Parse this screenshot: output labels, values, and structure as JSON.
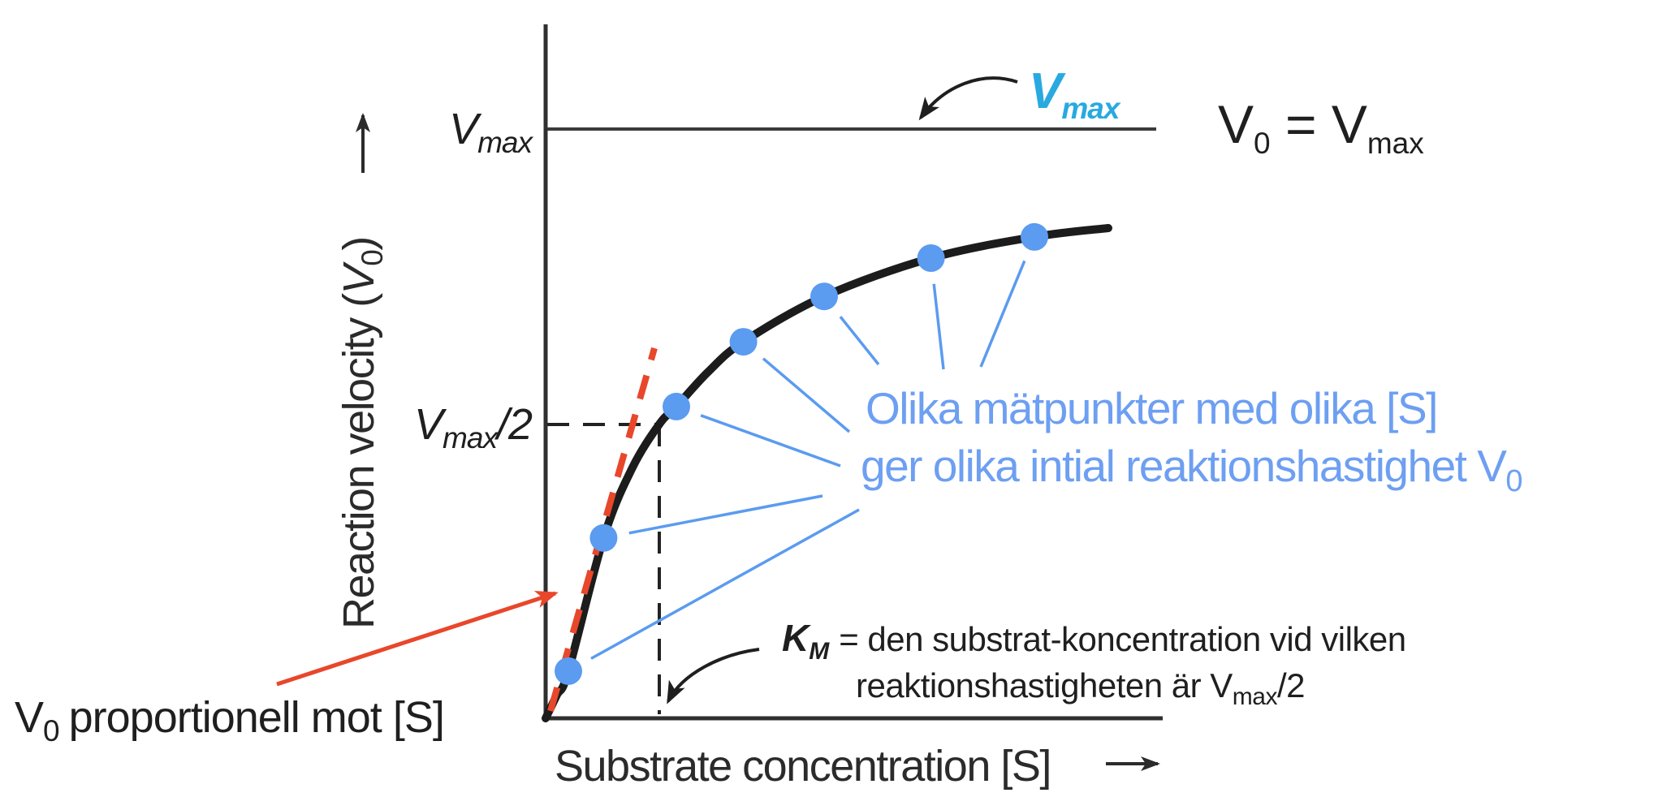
{
  "colors": {
    "ink": "#1f1f1f",
    "axis": "#2f2f2f",
    "curve": "#1c1c1c",
    "blue_marker": "#5b9bf0",
    "blue_text": "#6d9ff2",
    "cyan": "#29a9e0",
    "red": "#e8472b"
  },
  "labels": {
    "y_axis": {
      "pre": "Reaction velocity (",
      "v": "V",
      "sub": "0",
      "post": ")"
    },
    "x_axis": {
      "text": "Substrate concentration [S]"
    },
    "vmax_tick": {
      "v": "V",
      "sub": "max"
    },
    "vmax_half_tick": {
      "v": "V",
      "sub": "max",
      "post": "/2"
    },
    "vmax_callout": {
      "v": "V",
      "sub": "max"
    },
    "v0_eq_vmax": {
      "v1": "V",
      "sub1": "0",
      "eq": " = ",
      "v2": "V",
      "sub2": "max"
    },
    "measure_note": {
      "line1": "Olika mätpunkter med olika [S]",
      "line2_pre": "ger olika intial reaktionshastighet V",
      "line2_sub": "0"
    },
    "km_note": {
      "k": "K",
      "k_sub": "M",
      "line1_rest": "= den substrat-koncentration vid vilken",
      "line2_pre": "reaktionshastigheten är V",
      "line2_sub": "max",
      "line2_post": "/2"
    },
    "proportional_note": {
      "v": "V",
      "sub": "0",
      "rest": "proportionell mot [S]"
    }
  },
  "chart_data": {
    "type": "line",
    "title": "",
    "xlabel": "Substrate concentration [S]",
    "ylabel": "Reaction velocity (V0)",
    "axis_numeric_labels": false,
    "x_units": "[S] in multiples of KM (axis unlabeled, arbitrary units)",
    "y_units": "V0 as fraction of Vmax (axis unlabeled)",
    "xlim": [
      0,
      5.43
    ],
    "ylim": [
      0,
      1.18
    ],
    "grid": false,
    "legend": false,
    "vmax_level": 1.0,
    "half_vmax_level": 0.5,
    "km_position": 1.0,
    "curve_points": [
      [
        0,
        0
      ],
      [
        0.1,
        0.04
      ],
      [
        0.2,
        0.08
      ],
      [
        0.51,
        0.306
      ],
      [
        0.76,
        0.424
      ],
      [
        1.0,
        0.499
      ],
      [
        1.15,
        0.529
      ],
      [
        1.43,
        0.588
      ],
      [
        1.74,
        0.639
      ],
      [
        2.45,
        0.716
      ],
      [
        3.39,
        0.781
      ],
      [
        4.3,
        0.817
      ],
      [
        4.95,
        0.832
      ]
    ],
    "data_points": [
      [
        0.2,
        0.08
      ],
      [
        0.51,
        0.306
      ],
      [
        1.15,
        0.529
      ],
      [
        1.74,
        0.639
      ],
      [
        2.45,
        0.716
      ],
      [
        3.39,
        0.781
      ],
      [
        4.3,
        0.817
      ]
    ],
    "tangent_line": {
      "from": [
        0.04,
        0.012
      ],
      "to": [
        0.96,
        0.628
      ],
      "style": "red dashed, initial-rate tangent"
    }
  }
}
